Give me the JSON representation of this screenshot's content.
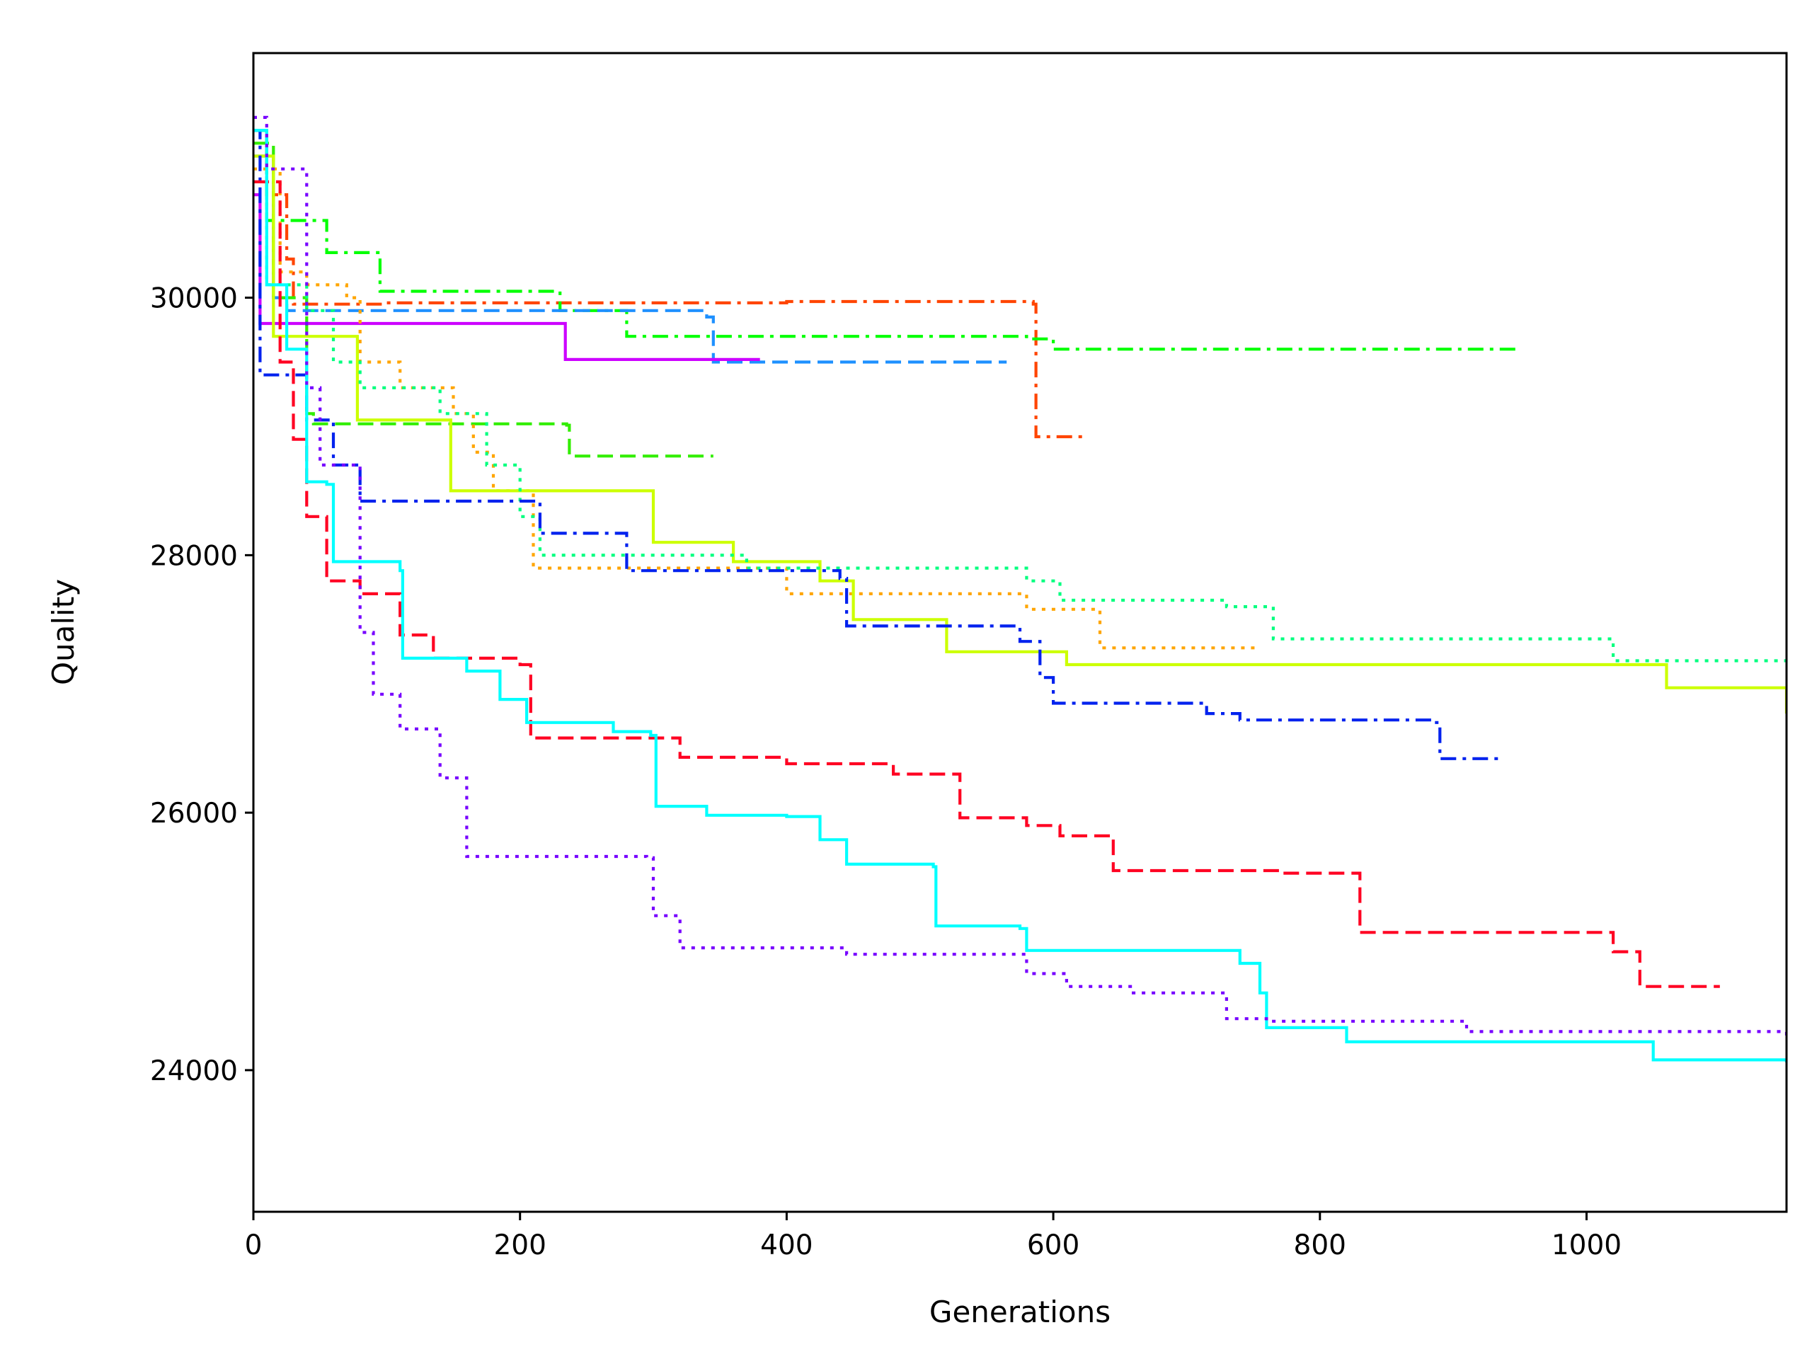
{
  "chart_data": {
    "type": "line",
    "title": "",
    "xlabel": "Generations",
    "ylabel": "Quality",
    "xlim": [
      0,
      1150
    ],
    "ylim": [
      22900,
      31900
    ],
    "x_ticks": [
      0,
      200,
      400,
      600,
      800,
      1000
    ],
    "y_ticks": [
      24000,
      26000,
      28000,
      30000
    ],
    "x_tick_labels": [
      "0",
      "200",
      "400",
      "600",
      "800",
      "1000"
    ],
    "y_tick_labels": [
      "24000",
      "26000",
      "28000",
      "30000"
    ],
    "grid": false,
    "legend": "none",
    "step": true,
    "series": [
      {
        "color": "#ff4500",
        "dash": "dashdot",
        "points": [
          [
            0,
            31300
          ],
          [
            10,
            30800
          ],
          [
            25,
            30300
          ],
          [
            30,
            29950
          ],
          [
            100,
            29960
          ],
          [
            400,
            29970
          ],
          [
            585,
            29950
          ],
          [
            587,
            28920
          ],
          [
            625,
            28920
          ]
        ]
      },
      {
        "color": "#00ff00",
        "dash": "dashdot",
        "points": [
          [
            0,
            31300
          ],
          [
            10,
            30600
          ],
          [
            55,
            30350
          ],
          [
            95,
            30050
          ],
          [
            230,
            29900
          ],
          [
            280,
            29700
          ],
          [
            580,
            29680
          ],
          [
            600,
            29600
          ],
          [
            950,
            29600
          ]
        ]
      },
      {
        "color": "#1e90ff",
        "dash": "dashed",
        "points": [
          [
            0,
            31100
          ],
          [
            15,
            30000
          ],
          [
            25,
            29900
          ],
          [
            340,
            29850
          ],
          [
            345,
            29500
          ],
          [
            565,
            29500
          ]
        ]
      },
      {
        "color": "#cc00ff",
        "dash": "solid",
        "points": [
          [
            0,
            30800
          ],
          [
            5,
            29800
          ],
          [
            232,
            29800
          ],
          [
            234,
            29520
          ],
          [
            380,
            29520
          ]
        ]
      },
      {
        "color": "#32ee00",
        "dash": "dashed",
        "points": [
          [
            0,
            31200
          ],
          [
            15,
            30000
          ],
          [
            40,
            29100
          ],
          [
            45,
            29020
          ],
          [
            235,
            29010
          ],
          [
            237,
            28770
          ],
          [
            345,
            28770
          ]
        ]
      },
      {
        "color": "#ffa500",
        "dash": "dotted",
        "points": [
          [
            0,
            31000
          ],
          [
            20,
            30200
          ],
          [
            40,
            30100
          ],
          [
            70,
            30000
          ],
          [
            80,
            29500
          ],
          [
            110,
            29300
          ],
          [
            150,
            29100
          ],
          [
            165,
            28800
          ],
          [
            180,
            28500
          ],
          [
            210,
            27900
          ],
          [
            400,
            27700
          ],
          [
            580,
            27580
          ],
          [
            635,
            27280
          ],
          [
            755,
            27280
          ]
        ]
      },
      {
        "color": "#ccff00",
        "dash": "solid",
        "points": [
          [
            0,
            31100
          ],
          [
            15,
            29700
          ],
          [
            78,
            29050
          ],
          [
            148,
            28500
          ],
          [
            300,
            28100
          ],
          [
            360,
            27950
          ],
          [
            425,
            27800
          ],
          [
            450,
            27500
          ],
          [
            520,
            27250
          ],
          [
            610,
            27150
          ],
          [
            1060,
            26970
          ],
          [
            1150,
            26770
          ]
        ]
      },
      {
        "color": "#00ff7f",
        "dash": "dotted",
        "points": [
          [
            0,
            31300
          ],
          [
            10,
            30100
          ],
          [
            40,
            29900
          ],
          [
            60,
            29500
          ],
          [
            80,
            29300
          ],
          [
            140,
            29100
          ],
          [
            175,
            28700
          ],
          [
            200,
            28300
          ],
          [
            215,
            28000
          ],
          [
            370,
            27900
          ],
          [
            580,
            27800
          ],
          [
            605,
            27650
          ],
          [
            730,
            27600
          ],
          [
            765,
            27350
          ],
          [
            1020,
            27180
          ],
          [
            1150,
            27160
          ]
        ]
      },
      {
        "color": "#0022ee",
        "dash": "dashdot",
        "points": [
          [
            0,
            31300
          ],
          [
            5,
            29400
          ],
          [
            25,
            29400
          ],
          [
            40,
            29050
          ],
          [
            60,
            28700
          ],
          [
            80,
            28420
          ],
          [
            215,
            28170
          ],
          [
            280,
            27880
          ],
          [
            440,
            27820
          ],
          [
            445,
            27450
          ],
          [
            575,
            27330
          ],
          [
            590,
            27050
          ],
          [
            600,
            26850
          ],
          [
            715,
            26770
          ],
          [
            740,
            26720
          ],
          [
            885,
            26700
          ],
          [
            890,
            26420
          ],
          [
            935,
            26420
          ]
        ]
      },
      {
        "color": "#ff0022",
        "dash": "dashed",
        "points": [
          [
            0,
            30900
          ],
          [
            20,
            29500
          ],
          [
            30,
            28900
          ],
          [
            40,
            28300
          ],
          [
            55,
            27800
          ],
          [
            80,
            27700
          ],
          [
            110,
            27380
          ],
          [
            135,
            27200
          ],
          [
            200,
            27150
          ],
          [
            208,
            26580
          ],
          [
            320,
            26430
          ],
          [
            400,
            26380
          ],
          [
            480,
            26300
          ],
          [
            530,
            25960
          ],
          [
            580,
            25900
          ],
          [
            605,
            25820
          ],
          [
            645,
            25550
          ],
          [
            770,
            25530
          ],
          [
            830,
            25070
          ],
          [
            1020,
            24920
          ],
          [
            1040,
            24650
          ],
          [
            1100,
            24650
          ]
        ]
      },
      {
        "color": "#00ffff",
        "dash": "solid",
        "points": [
          [
            0,
            31300
          ],
          [
            10,
            30100
          ],
          [
            25,
            29600
          ],
          [
            40,
            28570
          ],
          [
            55,
            28550
          ],
          [
            60,
            27950
          ],
          [
            110,
            27880
          ],
          [
            112,
            27200
          ],
          [
            160,
            27100
          ],
          [
            185,
            26880
          ],
          [
            205,
            26700
          ],
          [
            270,
            26630
          ],
          [
            298,
            26600
          ],
          [
            302,
            26050
          ],
          [
            340,
            25980
          ],
          [
            400,
            25970
          ],
          [
            425,
            25790
          ],
          [
            445,
            25600
          ],
          [
            510,
            25580
          ],
          [
            512,
            25120
          ],
          [
            575,
            25100
          ],
          [
            580,
            24930
          ],
          [
            740,
            24830
          ],
          [
            755,
            24600
          ],
          [
            760,
            24330
          ],
          [
            820,
            24220
          ],
          [
            1050,
            24080
          ],
          [
            1150,
            24060
          ]
        ]
      },
      {
        "color": "#7700ff",
        "dash": "dotted",
        "points": [
          [
            0,
            31400
          ],
          [
            10,
            31000
          ],
          [
            40,
            29300
          ],
          [
            50,
            28700
          ],
          [
            80,
            27400
          ],
          [
            90,
            26920
          ],
          [
            110,
            26650
          ],
          [
            140,
            26270
          ],
          [
            160,
            25660
          ],
          [
            295,
            25650
          ],
          [
            300,
            25200
          ],
          [
            320,
            24950
          ],
          [
            440,
            24950
          ],
          [
            445,
            24900
          ],
          [
            580,
            24750
          ],
          [
            610,
            24650
          ],
          [
            660,
            24600
          ],
          [
            730,
            24400
          ],
          [
            760,
            24380
          ],
          [
            910,
            24300
          ],
          [
            1150,
            24250
          ]
        ]
      }
    ]
  }
}
